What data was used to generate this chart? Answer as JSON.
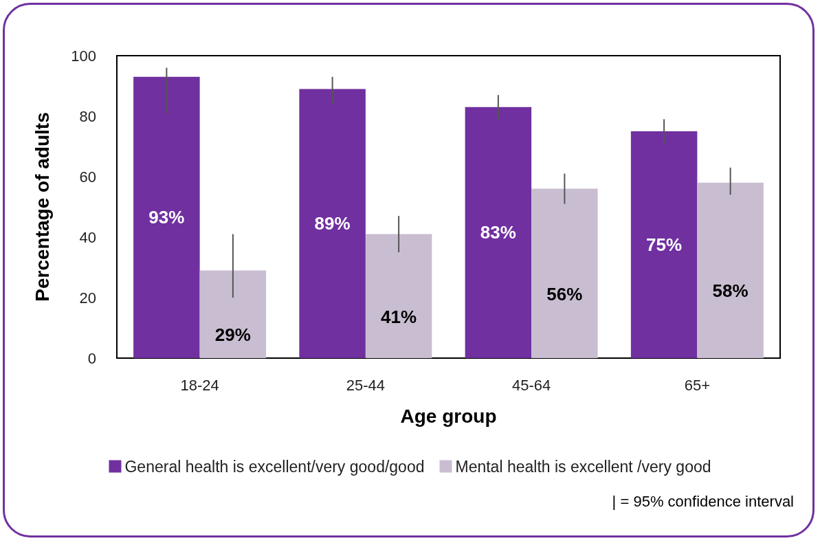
{
  "chart_data": {
    "type": "bar",
    "xlabel": "Age group",
    "ylabel": "Percentage of adults",
    "categories": [
      "18-24",
      "25-44",
      "45-64",
      "65+"
    ],
    "series": [
      {
        "name": "General health is excellent/very good/good",
        "color": "#7030a0",
        "values": [
          93,
          89,
          83,
          75
        ],
        "errors": [
          [
            81,
            96
          ],
          [
            84,
            93
          ],
          [
            79,
            87
          ],
          [
            71,
            79
          ]
        ],
        "value_labels": [
          "93%",
          "89%",
          "83%",
          "75%"
        ]
      },
      {
        "name": "Mental health is excellent /very good",
        "color": "#c9bed1",
        "values": [
          29,
          41,
          56,
          58
        ],
        "errors": [
          [
            20,
            41
          ],
          [
            35,
            47
          ],
          [
            51,
            61
          ],
          [
            54,
            63
          ]
        ],
        "value_labels": [
          "29%",
          "41%",
          "56%",
          "58%"
        ]
      }
    ],
    "ylim": [
      0,
      100
    ],
    "yticks": [
      0,
      20,
      40,
      60,
      80,
      100
    ],
    "grid": false,
    "legend": "bottom",
    "annotations": [
      "| = 95% confidence interval"
    ]
  }
}
